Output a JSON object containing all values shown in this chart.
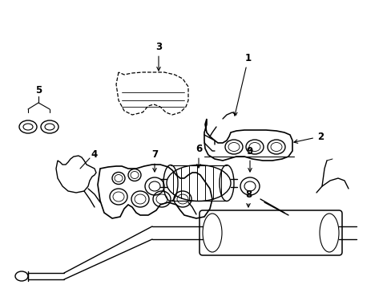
{
  "bg_color": "#ffffff",
  "line_color": "#000000",
  "lw": 1.0,
  "figsize": [
    4.89,
    3.6
  ],
  "dpi": 100
}
